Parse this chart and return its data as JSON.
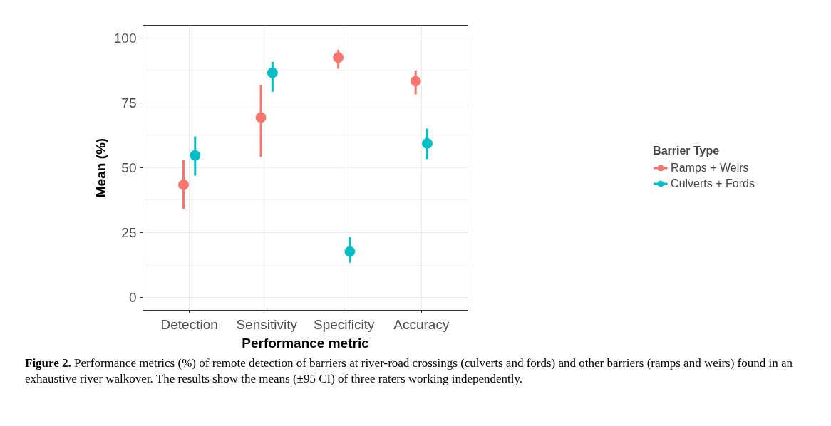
{
  "chart_data": {
    "type": "scatter",
    "xlabel": "Performance metric",
    "ylabel": "Mean (%)",
    "legend_title": "Barrier Type",
    "categories": [
      "Detection",
      "Sensitivity",
      "Specificity",
      "Accuracy"
    ],
    "series": [
      {
        "name": "Ramps + Weirs",
        "color": "#f8766d",
        "values": [
          43.4,
          69.3,
          92.4,
          83.3
        ],
        "errors": [
          [
            34.1,
            52.9
          ],
          [
            54.1,
            81.7
          ],
          [
            88.1,
            95.4
          ],
          [
            78.2,
            87.4
          ]
        ]
      },
      {
        "name": "Culverts + Fords",
        "color": "#00bfc4",
        "values": [
          54.7,
          86.5,
          17.7,
          59.3
        ],
        "errors": [
          [
            46.9,
            62.0
          ],
          [
            79.2,
            90.7
          ],
          [
            13.4,
            23.3
          ],
          [
            53.3,
            65.0
          ]
        ]
      }
    ],
    "ylim": [
      -4.9,
      104.8
    ],
    "yticks": [
      0,
      {
        "value": 12.5,
        "label": null
      },
      25,
      {
        "value": 37.5,
        "label": null
      },
      50,
      {
        "value": 62.5,
        "label": null
      },
      75,
      {
        "value": 87.5,
        "label": null
      },
      100
    ],
    "grid": true,
    "legend": "right",
    "marker": "circle",
    "annotations": [
      "Figure 2. Performance metrics (%) of remote detection of barriers at river-road crossings (culverts and fords) and other barriers (ramps and weirs) found in an exhaustive river walkover. The results show the means (±95 CI) of three raters working independently."
    ]
  }
}
